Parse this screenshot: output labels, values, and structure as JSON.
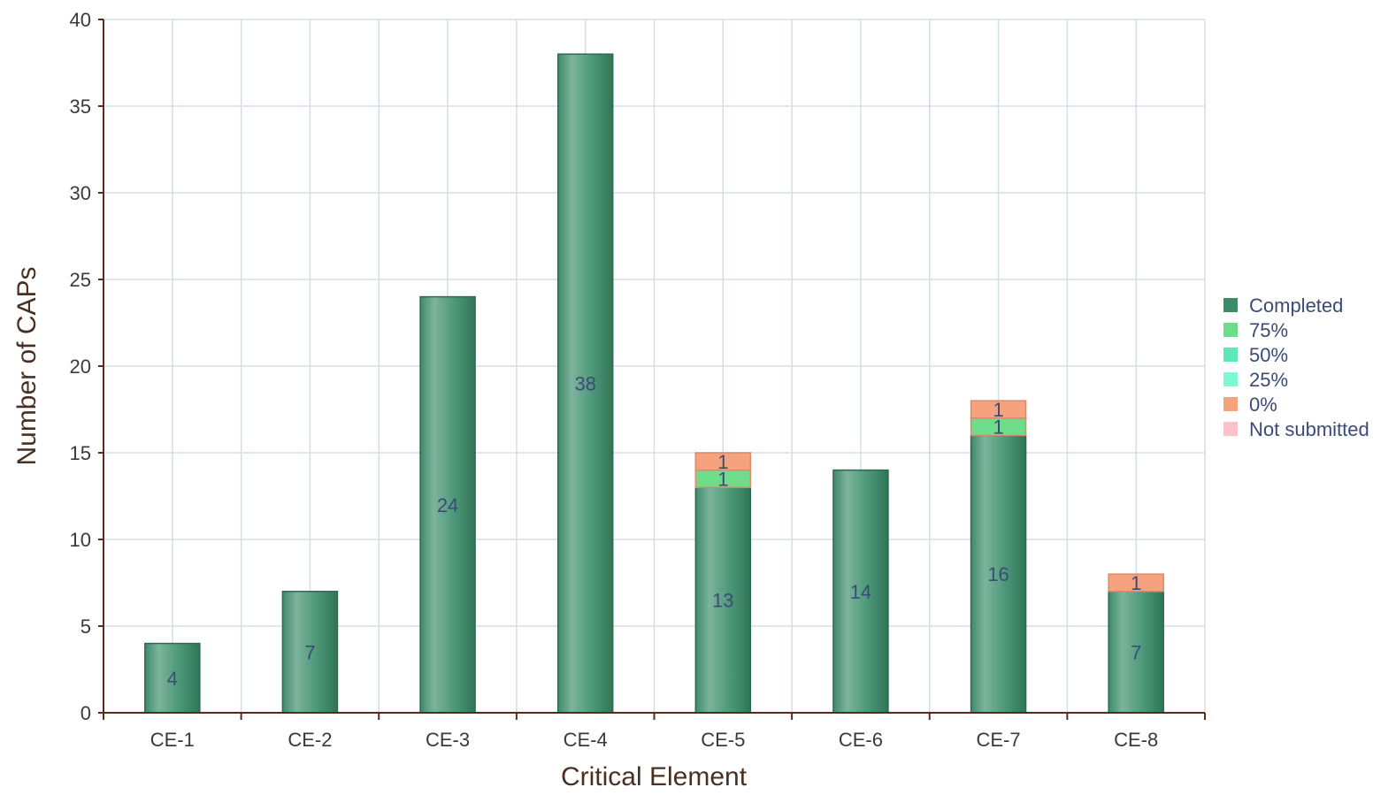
{
  "chart_data": {
    "type": "bar",
    "stacked": true,
    "xlabel": "Critical Element",
    "ylabel": "Number of CAPs",
    "ylim": [
      0,
      40
    ],
    "yticks": [
      0,
      5,
      10,
      15,
      20,
      25,
      30,
      35,
      40
    ],
    "grid": true,
    "legend_position": "right",
    "categories": [
      "CE-1",
      "CE-2",
      "CE-3",
      "CE-4",
      "CE-5",
      "CE-6",
      "CE-7",
      "CE-8"
    ],
    "series": [
      {
        "name": "Completed",
        "color": "#3d8a6a",
        "values": [
          4,
          7,
          24,
          38,
          13,
          14,
          16,
          7
        ]
      },
      {
        "name": "75%",
        "color": "#6fdc8c",
        "values": [
          0,
          0,
          0,
          0,
          1,
          0,
          1,
          0
        ]
      },
      {
        "name": "50%",
        "color": "#5ee8b8",
        "values": [
          0,
          0,
          0,
          0,
          0,
          0,
          0,
          0
        ]
      },
      {
        "name": "25%",
        "color": "#7ff7d4",
        "values": [
          0,
          0,
          0,
          0,
          0,
          0,
          0,
          0
        ]
      },
      {
        "name": "0%",
        "color": "#f7a27e",
        "values": [
          0,
          0,
          0,
          0,
          1,
          0,
          1,
          1
        ]
      },
      {
        "name": "Not submitted",
        "color": "#ffc0cb",
        "values": [
          0,
          0,
          0,
          0,
          0,
          0,
          0,
          0
        ]
      }
    ]
  }
}
